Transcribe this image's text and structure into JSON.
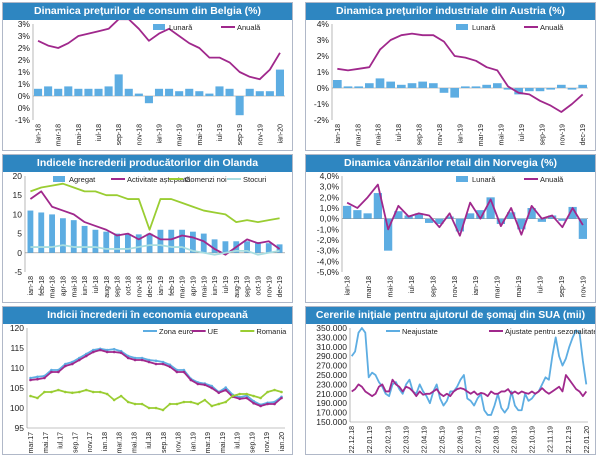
{
  "chart_data": [
    {
      "id": "c1",
      "type": "bar+line",
      "title": "Dinamica prețurilor de consum din Belgia (%)",
      "categories": [
        "ian-18",
        "feb-18",
        "mar-18",
        "apr-18",
        "mai-18",
        "iun-18",
        "iul-18",
        "aug-18",
        "sep-18",
        "oct-18",
        "nov-18",
        "dec-18",
        "ian-19",
        "feb-19",
        "mar-19",
        "apr-19",
        "mai-19",
        "iun-19",
        "iul-19",
        "aug-19",
        "sep-19",
        "oct-19",
        "nov-19",
        "dec-19",
        "ian-20"
      ],
      "tick_labels": [
        "ian-18",
        "mar-18",
        "mai-18",
        "iul-18",
        "sep-18",
        "nov-18",
        "ian-19",
        "mar-19",
        "mai-19",
        "iul-19",
        "sep-19",
        "nov-19",
        "ian-20"
      ],
      "series": [
        {
          "name": "Lunară",
          "kind": "bar",
          "color": "#5dade2",
          "values": [
            0.3,
            0.4,
            0.3,
            0.4,
            0.3,
            0.3,
            0.3,
            0.4,
            0.9,
            0.3,
            0.1,
            -0.3,
            0.3,
            0.3,
            0.2,
            0.3,
            0.2,
            0.1,
            0.4,
            0.3,
            -0.8,
            0.3,
            0.2,
            0.2,
            1.1
          ]
        },
        {
          "name": "Anuală",
          "kind": "line",
          "color": "#a0288c",
          "values": [
            2.3,
            2.1,
            2.0,
            2.2,
            2.5,
            2.6,
            2.7,
            2.8,
            3.2,
            3.2,
            2.8,
            2.3,
            2.6,
            2.8,
            2.5,
            2.2,
            2.0,
            1.6,
            1.6,
            1.4,
            1.0,
            0.8,
            0.7,
            1.1,
            1.8
          ]
        }
      ],
      "ylim": [
        -1,
        3
      ],
      "yticks": [
        -1,
        -0.5,
        0,
        0.5,
        1,
        1.5,
        2,
        2.5,
        3
      ],
      "ytick_labels": [
        "-1%",
        "0%",
        "0%",
        "1%",
        "1%",
        "2%",
        "2%",
        "3%",
        "3%"
      ],
      "legend": [
        "Lunară",
        "Anuală"
      ]
    },
    {
      "id": "c2",
      "type": "bar+line",
      "title": "Dinamica prețurilor industriale din Austria (%)",
      "categories": [
        "ian-18",
        "feb-18",
        "mar-18",
        "apr-18",
        "mai-18",
        "iun-18",
        "iul-18",
        "aug-18",
        "sep-18",
        "oct-18",
        "nov-18",
        "dec-18",
        "ian-19",
        "feb-19",
        "mar-19",
        "apr-19",
        "mai-19",
        "iun-19",
        "iul-19",
        "aug-19",
        "sep-19",
        "oct-19",
        "nov-19",
        "dec-19"
      ],
      "tick_labels": [
        "ian-18",
        "mar-18",
        "mai-18",
        "iul-18",
        "sep-18",
        "nov-18",
        "ian-19",
        "mar-19",
        "mai-19",
        "iul-19",
        "sep-19",
        "nov-19",
        "dec-19"
      ],
      "series": [
        {
          "name": "Lunară",
          "kind": "bar",
          "color": "#5dade2",
          "values": [
            0.5,
            0.1,
            0.1,
            0.3,
            0.6,
            0.4,
            0.2,
            0.3,
            0.4,
            0.3,
            -0.3,
            -0.6,
            0.1,
            0.1,
            0.2,
            0.3,
            -0.1,
            -0.4,
            -0.2,
            -0.2,
            -0.1,
            0.2,
            -0.1,
            0.2
          ]
        },
        {
          "name": "Anuală",
          "kind": "line",
          "color": "#a0288c",
          "values": [
            1.2,
            1.1,
            1.2,
            1.3,
            2.4,
            3.0,
            3.3,
            3.4,
            3.3,
            3.3,
            2.9,
            2.0,
            1.9,
            1.7,
            1.3,
            1.1,
            0.1,
            -0.3,
            -0.4,
            -0.8,
            -1.1,
            -1.5,
            -1.0,
            -0.4
          ]
        }
      ],
      "ylim": [
        -2,
        4
      ],
      "yticks": [
        -2,
        -1,
        0,
        1,
        2,
        3,
        4
      ],
      "ytick_labels": [
        "-2%",
        "-1%",
        "0%",
        "1%",
        "2%",
        "3%",
        "4%"
      ],
      "legend": [
        "Lunară",
        "Anuală"
      ]
    },
    {
      "id": "c3",
      "type": "bar+line",
      "title": "Indicele încrederii producătorilor din Olanda",
      "categories": [
        "ian-18",
        "feb-18",
        "mar-18",
        "apr-18",
        "mai-18",
        "iun-18",
        "iul-18",
        "aug-18",
        "sep-18",
        "oct-18",
        "nov-18",
        "dec-18",
        "ian-19",
        "feb-19",
        "mar-19",
        "apr-19",
        "mai-19",
        "iun-19",
        "iul-19",
        "aug-19",
        "sep-19",
        "oct-19",
        "nov-19",
        "dec-19"
      ],
      "tick_labels": [
        "ian-18",
        "feb-18",
        "mar-18",
        "apr-18",
        "mai-18",
        "iun-18",
        "iul-18",
        "aug-18",
        "sep-18",
        "oct-18",
        "nov-18",
        "dec-18",
        "ian-19",
        "feb-19",
        "mar-19",
        "apr-19",
        "mai-19",
        "iun-19",
        "iul-19",
        "aug-19",
        "sep-19",
        "oct-19",
        "nov-19",
        "dec-19"
      ],
      "series": [
        {
          "name": "Agregat",
          "kind": "bar",
          "color": "#5dade2",
          "values": [
            11,
            10.5,
            10,
            9,
            8.5,
            7,
            6,
            5.5,
            5,
            4.8,
            4.8,
            5,
            6,
            6,
            6,
            5.5,
            5,
            3.5,
            3,
            3,
            3,
            2.8,
            2.5,
            2.2
          ]
        },
        {
          "name": "Activitate așteptată",
          "kind": "line",
          "color": "#a0288c",
          "values": [
            14,
            16,
            12,
            11,
            10,
            8,
            7,
            6,
            4.5,
            5,
            3.5,
            5,
            3.5,
            3.5,
            4.5,
            4,
            3,
            1,
            -0.5,
            1.5,
            3.5,
            2.5,
            3,
            1
          ]
        },
        {
          "name": "Comenzi noi",
          "kind": "line",
          "color": "#9acd32",
          "values": [
            16,
            17,
            17.5,
            18,
            17,
            16,
            16,
            15,
            15,
            14,
            14,
            6,
            14,
            14,
            13,
            12,
            11,
            10.5,
            10,
            8,
            8.5,
            8,
            8.5,
            9
          ]
        },
        {
          "name": "Stocuri",
          "kind": "line",
          "color": "#a8dde0",
          "values": [
            1.5,
            1.5,
            1.5,
            2,
            1.5,
            1.5,
            1.5,
            1,
            1,
            1,
            1.5,
            2,
            2,
            1.5,
            1.5,
            0.5,
            0,
            -0.5,
            0,
            0.5,
            0.5,
            -0.5,
            0,
            0.5
          ]
        }
      ],
      "ylim": [
        -5,
        20
      ],
      "yticks": [
        -5,
        0,
        5,
        10,
        15,
        20
      ],
      "ytick_labels": [
        "-5",
        "0",
        "5",
        "10",
        "15",
        "20"
      ],
      "legend": [
        "Agregat",
        "Activitate așteptată",
        "Comenzi noi",
        "Stocuri"
      ]
    },
    {
      "id": "c4",
      "type": "bar+line",
      "title": "Dinamica vânzărilor retail din Norvegia (%)",
      "categories": [
        "ian-18",
        "feb-18",
        "mar-18",
        "apr-18",
        "mai-18",
        "iun-18",
        "iul-18",
        "aug-18",
        "sep-18",
        "oct-18",
        "nov-18",
        "dec-18",
        "ian-19",
        "feb-19",
        "mar-19",
        "apr-19",
        "mai-19",
        "iun-19",
        "iul-19",
        "aug-19",
        "sep-19",
        "oct-19",
        "nov-19",
        "dec-19"
      ],
      "tick_labels": [
        "ian-18",
        "mar-18",
        "mai-18",
        "iul-18",
        "sep-18",
        "nov-18",
        "ian-19",
        "mar-19",
        "mai-19",
        "iul-19",
        "sep-19",
        "nov-19"
      ],
      "series": [
        {
          "name": "Lunară",
          "kind": "bar",
          "color": "#5dade2",
          "values": [
            1.2,
            0.8,
            0.5,
            2.4,
            -3.0,
            0.7,
            0.3,
            0.5,
            -0.4,
            -0.5,
            0.2,
            -1.2,
            0.5,
            0.8,
            2.0,
            -0.5,
            0.6,
            -1.0,
            1.0,
            -0.3,
            0.3,
            -0.2,
            1.1,
            -1.9
          ]
        },
        {
          "name": "Anuală",
          "kind": "line",
          "color": "#a0288c",
          "values": [
            1.5,
            1.0,
            2.0,
            3.2,
            -1.0,
            1.2,
            0.2,
            0.5,
            0.3,
            -0.8,
            0.5,
            -1.6,
            1.5,
            0.0,
            1.8,
            -0.7,
            1.0,
            -1.5,
            1.2,
            0.0,
            0.3,
            -0.8,
            1.0,
            -0.6
          ]
        }
      ],
      "ylim": [
        -5,
        4
      ],
      "yticks": [
        -5,
        -4,
        -3,
        -2,
        -1,
        0,
        1,
        2,
        3,
        4
      ],
      "ytick_labels": [
        "-5,0%",
        "-4,0%",
        "-3,0%",
        "-2,0%",
        "-1,0%",
        "0,0%",
        "1,0%",
        "2,0%",
        "3,0%",
        "4,0%"
      ],
      "legend": [
        "Lunară",
        "Anuală"
      ]
    },
    {
      "id": "c5",
      "type": "line",
      "title": "Indicii încrederii în economia europeană",
      "categories": [
        "ian-17",
        "feb-17",
        "mar-17",
        "apr-17",
        "mai-17",
        "iun-17",
        "iul-17",
        "aug-17",
        "sep-17",
        "oct-17",
        "nov-17",
        "dec-17",
        "ian-18",
        "feb-18",
        "mar-18",
        "apr-18",
        "mai-18",
        "iun-18",
        "iul-18",
        "aug-18",
        "sep-18",
        "oct-18",
        "nov-18",
        "dec-18",
        "ian-19",
        "feb-19",
        "mar-19",
        "apr-19",
        "mai-19",
        "iun-19",
        "iul-19",
        "aug-19",
        "sep-19",
        "oct-19",
        "nov-19",
        "dec-19",
        "ian-20"
      ],
      "tick_labels": [
        "mar.17",
        "mai.17",
        "iul.17",
        "sep.17",
        "nov.17",
        "ian.18",
        "mar.18",
        "mai.18",
        "iul.18",
        "sep.18",
        "nov.18",
        "ian.19",
        "mar.19",
        "mai.19",
        "iul.19",
        "sep.19",
        "nov.19",
        "ian.20"
      ],
      "series": [
        {
          "name": "Zona euro",
          "kind": "line",
          "color": "#5dade2",
          "values": [
            107.5,
            107.8,
            108.0,
            109.5,
            109.5,
            111.0,
            111.5,
            112.5,
            113.5,
            114.5,
            114.8,
            114.5,
            114.7,
            114.2,
            113.0,
            112.5,
            112.5,
            112.0,
            111.8,
            111.5,
            110.8,
            109.5,
            109.5,
            107.3,
            106.4,
            106.1,
            105.5,
            104.0,
            105.1,
            103.3,
            102.7,
            103.1,
            101.7,
            100.8,
            101.3,
            101.5,
            102.8
          ]
        },
        {
          "name": "UE",
          "kind": "line",
          "color": "#a0288c",
          "values": [
            107.0,
            107.2,
            107.5,
            109.0,
            109.0,
            110.5,
            111.0,
            112.0,
            113.0,
            114.0,
            114.5,
            114.0,
            114.0,
            113.8,
            112.5,
            112.0,
            112.0,
            111.5,
            111.0,
            111.0,
            110.3,
            109.0,
            109.0,
            107.0,
            106.0,
            105.8,
            105.0,
            103.8,
            104.5,
            102.8,
            102.3,
            102.5,
            101.2,
            100.5,
            101.0,
            101.0,
            102.5
          ]
        },
        {
          "name": "Romania",
          "kind": "line",
          "color": "#9acd32",
          "values": [
            103.0,
            102.5,
            104.0,
            104.0,
            104.5,
            104.0,
            103.8,
            104.0,
            104.5,
            104.0,
            104.0,
            103.5,
            102.0,
            103.0,
            101.5,
            101.0,
            101.0,
            100.0,
            100.0,
            99.5,
            101.0,
            101.0,
            101.5,
            101.5,
            101.0,
            102.0,
            100.5,
            101.0,
            101.5,
            103.0,
            103.5,
            103.5,
            103.0,
            102.5,
            104.0,
            104.5,
            104.0
          ]
        }
      ],
      "ylim": [
        95,
        120
      ],
      "yticks": [
        95,
        100,
        105,
        110,
        115,
        120
      ],
      "ytick_labels": [
        "95",
        "100",
        "105",
        "110",
        "115",
        "120"
      ],
      "legend": [
        "Zona euro",
        "UE",
        "Romania"
      ]
    },
    {
      "id": "c6",
      "type": "line",
      "title": "Cererile inițiale pentru ajutorul de șomaj din SUA (mii)",
      "tick_labels": [
        "22.12.18",
        "22.01.19",
        "22.02.19",
        "22.03.19",
        "22.04.19",
        "22.05.19",
        "22.06.19",
        "22.07.19",
        "22.08.19",
        "22.09.19",
        "22.10.19",
        "22.11.19",
        "22.12.19",
        "22.01.20"
      ],
      "series": [
        {
          "name": "Neajustate",
          "kind": "line",
          "color": "#5dade2",
          "values": [
            290,
            300,
            340,
            350,
            340,
            245,
            255,
            250,
            235,
            225,
            210,
            205,
            230,
            235,
            220,
            210,
            230,
            240,
            215,
            210,
            230,
            215,
            205,
            190,
            215,
            230,
            200,
            185,
            195,
            215,
            215,
            225,
            240,
            250,
            200,
            195,
            185,
            200,
            210,
            175,
            165,
            165,
            185,
            210,
            180,
            170,
            180,
            215,
            185,
            175,
            175,
            210,
            195,
            200,
            210,
            215,
            230,
            245,
            240,
            290,
            330,
            290,
            270,
            285,
            310,
            330,
            345,
            340,
            280,
            230
          ]
        },
        {
          "name": "Ajustate pentru sezonalitate",
          "kind": "line",
          "color": "#a0288c",
          "values": [
            215,
            220,
            230,
            225,
            215,
            210,
            205,
            210,
            225,
            230,
            215,
            215,
            240,
            230,
            225,
            215,
            225,
            222,
            215,
            205,
            215,
            208,
            210,
            210,
            215,
            220,
            210,
            205,
            210,
            205,
            215,
            220,
            222,
            220,
            215,
            210,
            215,
            208,
            212,
            210,
            205,
            215,
            210,
            210,
            215,
            215,
            220,
            210,
            215,
            210,
            215,
            212,
            210,
            215,
            210,
            215,
            222,
            215,
            210,
            215,
            220,
            225,
            215,
            250,
            240,
            230,
            220,
            215,
            205,
            215
          ]
        }
      ],
      "ylim": [
        150,
        350
      ],
      "yticks": [
        150,
        170,
        190,
        210,
        230,
        250,
        270,
        290,
        310,
        330,
        350
      ],
      "ytick_labels": [
        "150.000",
        "170.000",
        "190.000",
        "210.000",
        "230.000",
        "250.000",
        "270.000",
        "290.000",
        "310.000",
        "330.000",
        "350.000"
      ],
      "legend": [
        "Neajustate",
        "Ajustate pentru sezonalitate"
      ]
    }
  ]
}
